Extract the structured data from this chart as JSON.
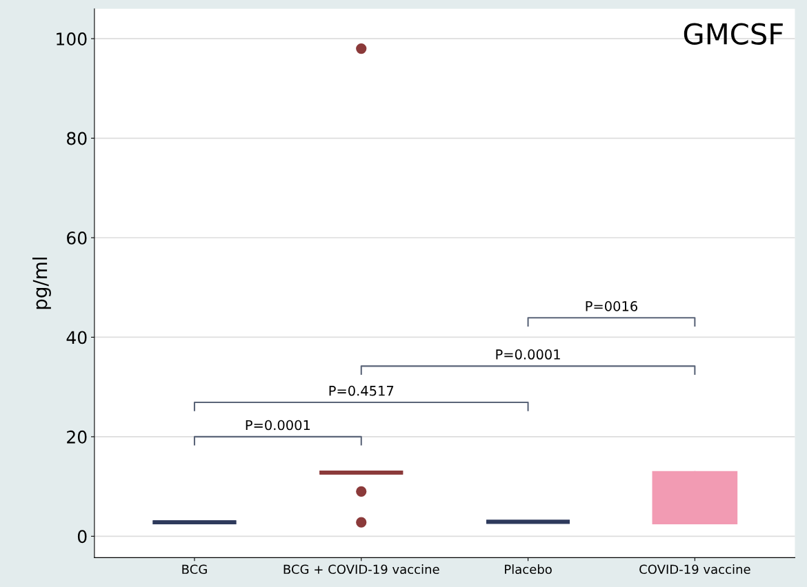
{
  "chart_data": {
    "type": "box",
    "title": "GMCSF",
    "ylabel": "pg/ml",
    "categories": [
      "BCG",
      "BCG + COVID-19 vaccine",
      "Placebo",
      "COVID-19 vaccine"
    ],
    "boxes": [
      {
        "low": 2.8,
        "q1": 2.8,
        "median": 2.8,
        "q3": 2.8,
        "high": 2.8
      },
      {
        "low": 12.8,
        "q1": 12.8,
        "median": 12.8,
        "q3": 12.8,
        "high": 12.8,
        "outliers": [
          98.0,
          9.0,
          2.8
        ]
      },
      {
        "low": 2.9,
        "q1": 2.9,
        "median": 2.9,
        "q3": 2.9,
        "high": 2.9
      },
      {
        "low": 2.6,
        "q1": 2.6,
        "median": 2.6,
        "q3": 12.9,
        "high": 12.9
      }
    ],
    "colors": [
      "#2e3a5c",
      "#8b3a3a",
      "#2e3a5c",
      "#f29bb3"
    ],
    "annotations": [
      "P=0.0001",
      "P=0.4517",
      "P=0.0001",
      "P=0016"
    ],
    "ylim": [
      -4.3,
      106
    ],
    "yticks": [
      0,
      20,
      40,
      60,
      80,
      100
    ],
    "grid": "y"
  }
}
